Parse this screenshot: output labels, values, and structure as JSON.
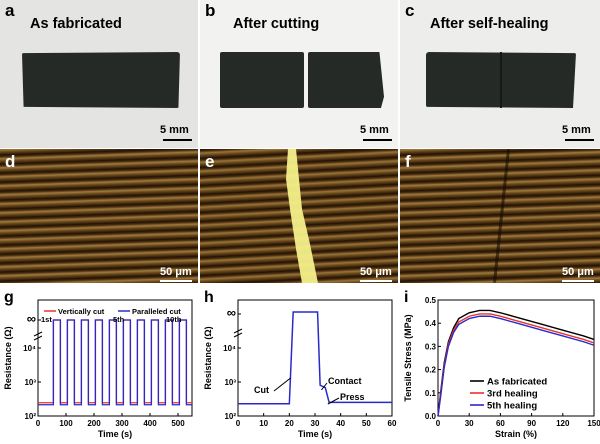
{
  "photos": [
    {
      "label": "a",
      "title": "As fabricated",
      "scale": "5 mm"
    },
    {
      "label": "b",
      "title": "After cutting",
      "scale": "5 mm"
    },
    {
      "label": "c",
      "title": "After self-healing",
      "scale": "5 mm"
    }
  ],
  "micro": [
    {
      "label": "d",
      "scale": "50 μm"
    },
    {
      "label": "e",
      "scale": "50 μm"
    },
    {
      "label": "f",
      "scale": "50 μm"
    }
  ],
  "colors": {
    "black": "#000000",
    "red": "#e8332a",
    "blue": "#2a2acc",
    "film": "#252a27",
    "wood": "#6b4a1c",
    "crack": "#f4f08a"
  },
  "chart_data": [
    {
      "panel": "g",
      "type": "line",
      "xlabel": "Time (s)",
      "ylabel": "Resistance (Ω)",
      "xlim": [
        0,
        550
      ],
      "xticks": [
        "0",
        "100",
        "200",
        "300",
        "400",
        "500"
      ],
      "yticks": [
        "10²",
        "10³",
        "10⁴",
        "∞"
      ],
      "yscale": "log (broken axis to ∞)",
      "baseline": 200,
      "series": [
        {
          "name": "Vertically cut",
          "color": "#e8332a"
        },
        {
          "name": "Paralleled cut",
          "color": "#2a2acc"
        }
      ],
      "cut_starts": [
        55,
        105,
        155,
        205,
        255,
        305,
        355,
        405,
        455,
        505
      ],
      "cut_width": 25,
      "annotations": [
        "1st",
        "5th",
        "10th"
      ]
    },
    {
      "panel": "h",
      "type": "line",
      "xlabel": "Time (s)",
      "ylabel": "Resistance (Ω)",
      "xlim": [
        0,
        60
      ],
      "xticks": [
        "0",
        "10",
        "20",
        "30",
        "40",
        "50",
        "60"
      ],
      "yticks": [
        "10²",
        "10³",
        "10⁴",
        "∞"
      ],
      "yscale": "log (broken axis to ∞)",
      "points": [
        [
          0,
          200
        ],
        [
          20,
          200
        ],
        [
          21.5,
          "∞"
        ],
        [
          31,
          "∞"
        ],
        [
          32,
          700
        ],
        [
          34,
          600
        ],
        [
          35.5,
          220
        ],
        [
          60,
          220
        ]
      ],
      "annotations": [
        "Cut",
        "Contact",
        "Press"
      ]
    },
    {
      "panel": "i",
      "type": "line",
      "xlabel": "Strain (%)",
      "ylabel": "Tensile Stress (MPa)",
      "xlim": [
        0,
        150
      ],
      "ylim": [
        0,
        0.5
      ],
      "xticks": [
        "0",
        "30",
        "60",
        "90",
        "120",
        "150"
      ],
      "yticks": [
        "0.0",
        "0.1",
        "0.2",
        "0.3",
        "0.4",
        "0.5"
      ],
      "legend": "lower-right",
      "series": [
        {
          "name": "As fabricated",
          "color": "#000000",
          "x": [
            0,
            3,
            6,
            10,
            15,
            20,
            30,
            40,
            50,
            60,
            80,
            100,
            120,
            140,
            150
          ],
          "y": [
            0,
            0.12,
            0.23,
            0.32,
            0.38,
            0.42,
            0.445,
            0.455,
            0.455,
            0.445,
            0.42,
            0.395,
            0.37,
            0.345,
            0.33
          ]
        },
        {
          "name": "3rd healing",
          "color": "#e8332a",
          "x": [
            0,
            3,
            6,
            10,
            15,
            20,
            30,
            40,
            50,
            60,
            80,
            100,
            120,
            140,
            150
          ],
          "y": [
            0,
            0.11,
            0.22,
            0.31,
            0.37,
            0.405,
            0.43,
            0.44,
            0.44,
            0.43,
            0.405,
            0.38,
            0.355,
            0.33,
            0.315
          ]
        },
        {
          "name": "5th healing",
          "color": "#2a2acc",
          "x": [
            0,
            3,
            6,
            10,
            15,
            20,
            30,
            40,
            50,
            60,
            80,
            100,
            120,
            140,
            150
          ],
          "y": [
            0,
            0.1,
            0.21,
            0.3,
            0.36,
            0.395,
            0.42,
            0.43,
            0.43,
            0.42,
            0.395,
            0.37,
            0.345,
            0.32,
            0.305
          ]
        }
      ]
    }
  ]
}
